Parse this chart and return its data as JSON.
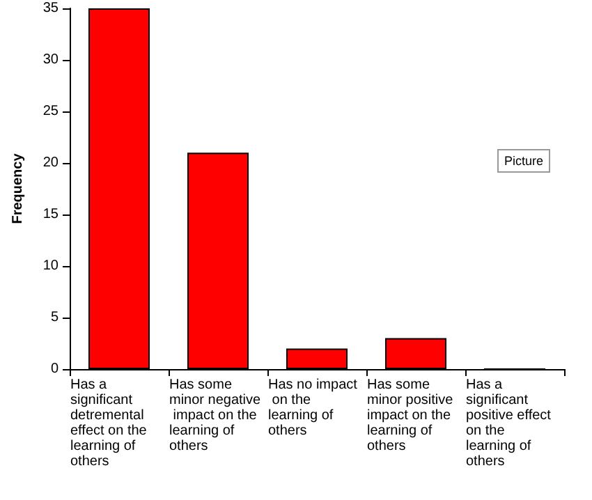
{
  "chart_data": {
    "type": "bar",
    "ylabel": "Frequency",
    "categories": [
      "Has a significant detremental effect on the learning of others",
      "Has some minor negative impact on the learning of others",
      "Has no impact on the learning of others",
      "Has some minor positive impact on the learning of others",
      "Has a significant positive effect on the learning of others"
    ],
    "values": [
      35,
      21,
      2,
      3,
      0
    ],
    "color": "#ff0000",
    "ylim": [
      0,
      35
    ],
    "yticks": [
      0,
      5,
      10,
      15,
      20,
      25,
      30,
      35
    ],
    "grid": false,
    "annotations": [
      "Picture"
    ]
  }
}
